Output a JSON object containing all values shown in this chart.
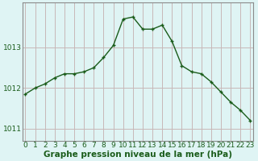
{
  "x": [
    0,
    1,
    2,
    3,
    4,
    5,
    6,
    7,
    8,
    9,
    10,
    11,
    12,
    13,
    14,
    15,
    16,
    17,
    18,
    19,
    20,
    21,
    22,
    23
  ],
  "y": [
    1011.85,
    1012.0,
    1012.1,
    1012.25,
    1012.35,
    1012.35,
    1012.4,
    1012.5,
    1012.75,
    1013.05,
    1013.7,
    1013.75,
    1013.45,
    1013.45,
    1013.55,
    1013.15,
    1012.55,
    1012.4,
    1012.35,
    1012.15,
    1011.9,
    1011.65,
    1011.45,
    1011.2
  ],
  "line_color": "#1a5c1a",
  "marker": "+",
  "background_color": "#dff4f4",
  "grid_color_h": "#c8b8b8",
  "grid_color_v": "#c8b8b8",
  "spine_color": "#8a8a8a",
  "ylabel_ticks": [
    1011,
    1012,
    1013
  ],
  "xlabel_ticks": [
    0,
    1,
    2,
    3,
    4,
    5,
    6,
    7,
    8,
    9,
    10,
    11,
    12,
    13,
    14,
    15,
    16,
    17,
    18,
    19,
    20,
    21,
    22,
    23
  ],
  "xlabel": "Graphe pression niveau de la mer (hPa)",
  "ylim": [
    1010.7,
    1014.1
  ],
  "xlim": [
    -0.3,
    23.3
  ],
  "tick_fontsize": 6.5,
  "xlabel_fontsize": 7.5
}
